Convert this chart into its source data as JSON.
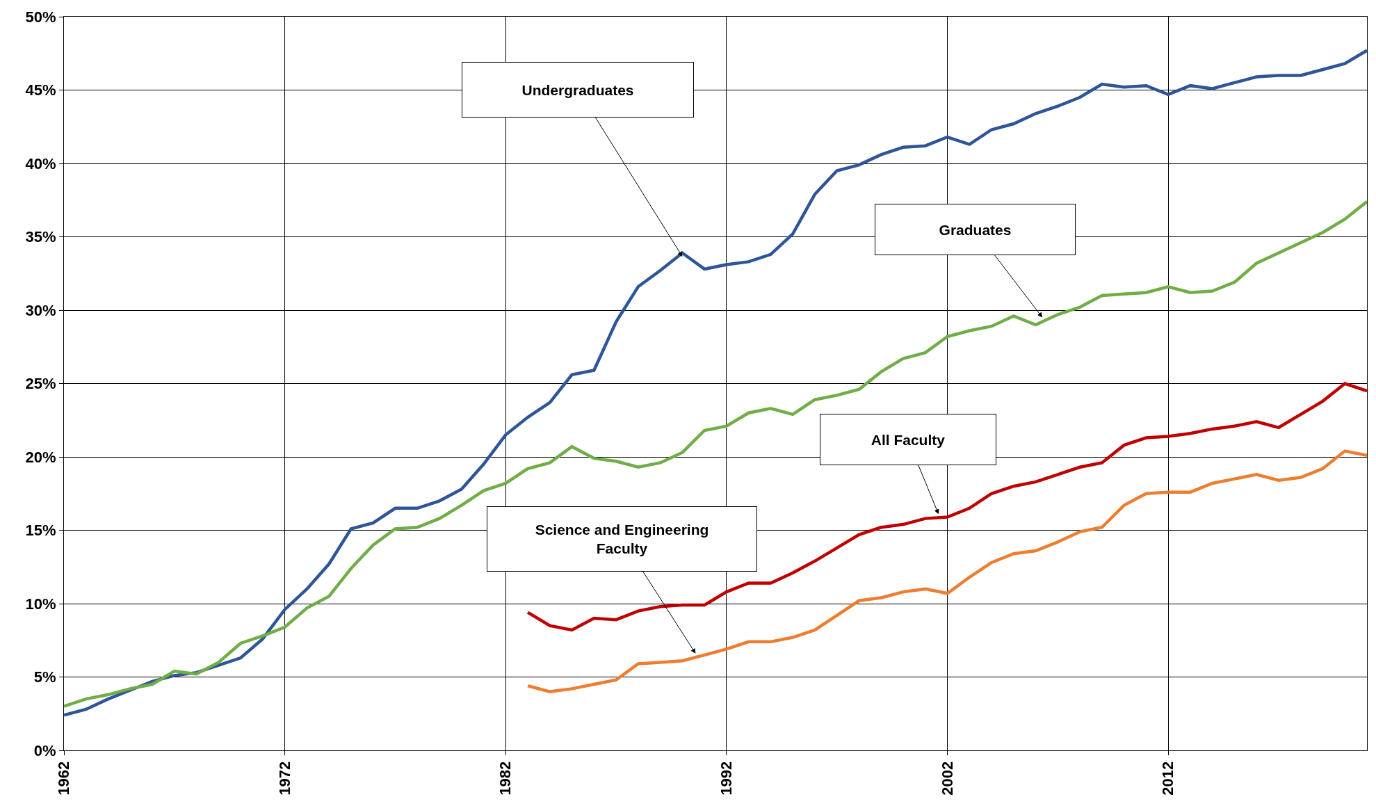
{
  "chart_data": {
    "type": "line",
    "xlim": [
      1962,
      2021
    ],
    "xticks": [
      1962,
      1972,
      1982,
      1992,
      2002,
      2012
    ],
    "ylim": [
      0,
      50
    ],
    "yticks": [
      {
        "value": 0,
        "label": "0%"
      },
      {
        "value": 5,
        "label": "5%"
      },
      {
        "value": 10,
        "label": "10%"
      },
      {
        "value": 15,
        "label": "15%"
      },
      {
        "value": 20,
        "label": "20%"
      },
      {
        "value": 25,
        "label": "25%"
      },
      {
        "value": 30,
        "label": "30%"
      },
      {
        "value": 35,
        "label": "35%"
      },
      {
        "value": 40,
        "label": "40%"
      },
      {
        "value": 45,
        "label": "45%"
      },
      {
        "value": 50,
        "label": "50%"
      }
    ],
    "grid": true,
    "marker": "none",
    "line_style": "solid",
    "series": [
      {
        "color": "#2e5597",
        "x": [
          1962,
          1963,
          1964,
          1965,
          1966,
          1967,
          1968,
          1969,
          1970,
          1971,
          1972,
          1973,
          1974,
          1975,
          1976,
          1977,
          1978,
          1979,
          1980,
          1981,
          1982,
          1983,
          1984,
          1985,
          1986,
          1987,
          1988,
          1989,
          1990,
          1991,
          1992,
          1993,
          1994,
          1995,
          1996,
          1997,
          1998,
          1999,
          2000,
          2001,
          2002,
          2003,
          2004,
          2005,
          2006,
          2007,
          2008,
          2009,
          2010,
          2011,
          2012,
          2013,
          2014,
          2015,
          2016,
          2017,
          2018,
          2019,
          2020,
          2021
        ],
        "values": [
          2.4,
          2.8,
          3.5,
          4.1,
          4.7,
          5.1,
          5.3,
          5.8,
          6.3,
          7.6,
          9.6,
          11.0,
          12.7,
          15.1,
          15.5,
          16.5,
          16.5,
          17.0,
          17.8,
          19.5,
          21.5,
          22.7,
          23.7,
          25.6,
          25.9,
          29.2,
          31.6,
          32.7,
          33.9,
          32.8,
          33.1,
          33.3,
          33.8,
          35.2,
          37.9,
          39.5,
          39.9,
          40.6,
          41.1,
          41.2,
          41.8,
          41.3,
          42.3,
          42.7,
          43.4,
          43.9,
          44.5,
          45.4,
          45.2,
          45.3,
          44.7,
          45.3,
          45.1,
          45.5,
          45.9,
          46.0,
          46.0,
          46.4,
          46.8,
          47.7
        ]
      },
      {
        "color": "#70ad47",
        "x": [
          1962,
          1963,
          1964,
          1965,
          1966,
          1967,
          1968,
          1969,
          1970,
          1971,
          1972,
          1973,
          1974,
          1975,
          1976,
          1977,
          1978,
          1979,
          1980,
          1981,
          1982,
          1983,
          1984,
          1985,
          1986,
          1987,
          1988,
          1989,
          1990,
          1991,
          1992,
          1993,
          1994,
          1995,
          1996,
          1997,
          1998,
          1999,
          2000,
          2001,
          2002,
          2003,
          2004,
          2005,
          2006,
          2007,
          2008,
          2009,
          2010,
          2011,
          2012,
          2013,
          2014,
          2015,
          2016,
          2017,
          2018,
          2019,
          2020,
          2021
        ],
        "values": [
          3.0,
          3.5,
          3.8,
          4.2,
          4.5,
          5.4,
          5.2,
          6.0,
          7.3,
          7.8,
          8.4,
          9.7,
          10.5,
          12.4,
          14.0,
          15.1,
          15.2,
          15.8,
          16.7,
          17.7,
          18.2,
          19.2,
          19.6,
          20.7,
          19.9,
          19.7,
          19.3,
          19.6,
          20.3,
          21.8,
          22.1,
          23.0,
          23.3,
          22.9,
          23.9,
          24.2,
          24.6,
          25.8,
          26.7,
          27.1,
          28.2,
          28.6,
          28.9,
          29.6,
          29.0,
          29.7,
          30.2,
          31.0,
          31.1,
          31.2,
          31.6,
          31.2,
          31.3,
          31.9,
          33.2,
          33.9,
          34.6,
          35.3,
          36.2,
          37.4
        ]
      },
      {
        "color": "#c00000",
        "x": [
          1983,
          1984,
          1985,
          1986,
          1987,
          1988,
          1989,
          1990,
          1991,
          1992,
          1993,
          1994,
          1995,
          1996,
          1997,
          1998,
          1999,
          2000,
          2001,
          2002,
          2003,
          2004,
          2005,
          2006,
          2007,
          2008,
          2009,
          2010,
          2011,
          2012,
          2013,
          2014,
          2015,
          2016,
          2017,
          2018,
          2019,
          2020,
          2021
        ],
        "values": [
          9.4,
          8.5,
          8.2,
          9.0,
          8.9,
          9.5,
          9.8,
          9.9,
          9.9,
          10.8,
          11.4,
          11.4,
          12.1,
          12.9,
          13.8,
          14.7,
          15.2,
          15.4,
          15.8,
          15.9,
          16.5,
          17.5,
          18.0,
          18.3,
          18.8,
          19.3,
          19.6,
          20.8,
          21.3,
          21.4,
          21.6,
          21.9,
          22.1,
          22.4,
          22.0,
          22.9,
          23.8,
          25.0,
          24.5
        ]
      },
      {
        "color": "#ed7d31",
        "x": [
          1983,
          1984,
          1985,
          1986,
          1987,
          1988,
          1989,
          1990,
          1991,
          1992,
          1993,
          1994,
          1995,
          1996,
          1997,
          1998,
          1999,
          2000,
          2001,
          2002,
          2003,
          2004,
          2005,
          2006,
          2007,
          2008,
          2009,
          2010,
          2011,
          2012,
          2013,
          2014,
          2015,
          2016,
          2017,
          2018,
          2019,
          2020,
          2021
        ],
        "values": [
          4.4,
          4.0,
          4.2,
          4.5,
          4.8,
          5.9,
          6.0,
          6.1,
          6.5,
          6.9,
          7.4,
          7.4,
          7.7,
          8.2,
          9.2,
          10.2,
          10.4,
          10.8,
          11.0,
          10.7,
          11.8,
          12.8,
          13.4,
          13.6,
          14.2,
          14.9,
          15.2,
          16.7,
          17.5,
          17.6,
          17.6,
          18.2,
          18.5,
          18.8,
          18.4,
          18.6,
          19.2,
          20.4,
          20.1
        ]
      }
    ],
    "annotations": [
      "Undergraduates",
      {
        "text": "Graduates",
        "x": 2006.3,
        "y": 29.5
      },
      {
        "text": "All Faculty",
        "x": 2001.6,
        "y": 16.1
      },
      {
        "text": "Science and Engineering\nFaculty",
        "x": 1990.6,
        "y": 6.6
      }
    ]
  }
}
